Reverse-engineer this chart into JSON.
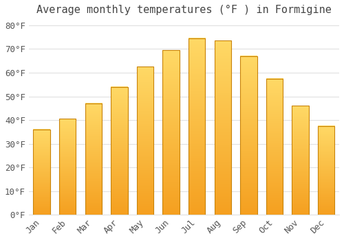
{
  "title": "Average monthly temperatures (°F ) in Formigine",
  "months": [
    "Jan",
    "Feb",
    "Mar",
    "Apr",
    "May",
    "Jun",
    "Jul",
    "Aug",
    "Sep",
    "Oct",
    "Nov",
    "Dec"
  ],
  "values": [
    36,
    40.5,
    47,
    54,
    62.5,
    69.5,
    74.5,
    73.5,
    67,
    57.5,
    46,
    37.5
  ],
  "bar_color_top": "#FFD966",
  "bar_color_bottom": "#F5A020",
  "bar_edge_color": "#C8830A",
  "background_color": "#FFFFFF",
  "grid_color": "#E0E0E0",
  "text_color": "#555555",
  "title_color": "#444444",
  "ylim": [
    0,
    82
  ],
  "yticks": [
    0,
    10,
    20,
    30,
    40,
    50,
    60,
    70,
    80
  ],
  "title_fontsize": 11,
  "tick_fontsize": 9,
  "bar_width": 0.65
}
